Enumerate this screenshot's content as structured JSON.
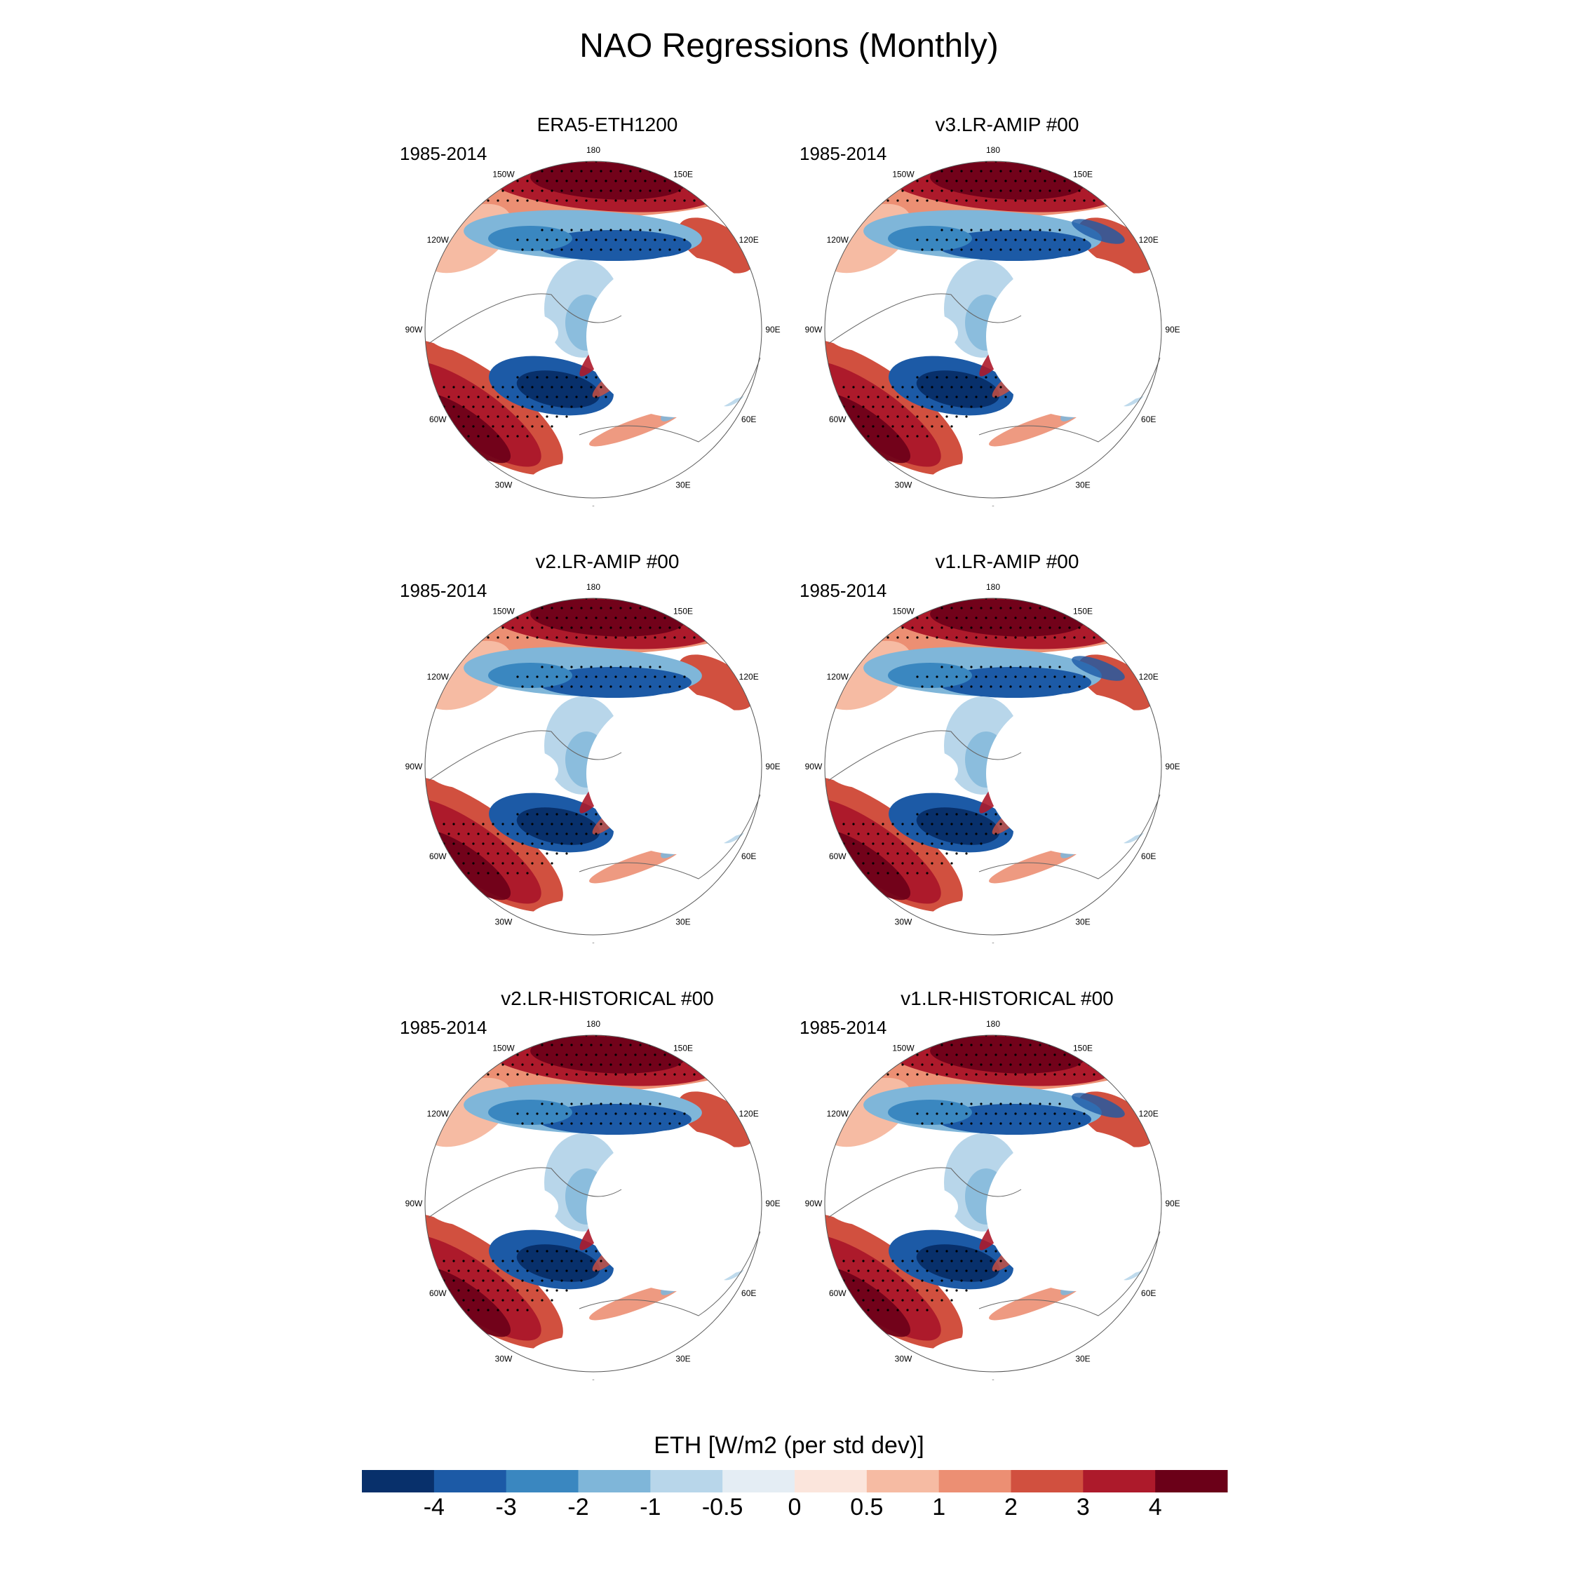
{
  "title": "NAO Regressions (Monthly)",
  "period": "1985-2014",
  "lon_labels": [
    "180",
    "150E",
    "120E",
    "90E",
    "60E",
    "30E",
    "0",
    "30W",
    "60W",
    "90W",
    "120W",
    "150W"
  ],
  "panels": [
    {
      "title": "ERA5-ETH1200",
      "period": "1985-2014"
    },
    {
      "title": "v3.LR-AMIP  #00",
      "period": "1985-2014"
    },
    {
      "title": "v2.LR-AMIP  #00",
      "period": "1985-2014"
    },
    {
      "title": "v1.LR-AMIP  #00",
      "period": "1985-2014"
    },
    {
      "title": "v2.LR-HISTORICAL  #00",
      "period": "1985-2014"
    },
    {
      "title": "v1.LR-HISTORICAL  #00",
      "period": "1985-2014"
    }
  ],
  "colorbar": {
    "title": "ETH [W/m2 (per std dev)]",
    "ticks": [
      "-4",
      "-3",
      "-2",
      "-1",
      "-0.5",
      "0",
      "0.5",
      "1",
      "2",
      "3",
      "4"
    ],
    "colors": [
      "#08306b",
      "#1c5aa6",
      "#3a87c0",
      "#7fb6d9",
      "#b8d6ea",
      "#e4edf4",
      "#fbe5dc",
      "#f6bba3",
      "#ec8f73",
      "#d1503f",
      "#ad1a2b",
      "#6b0018"
    ]
  }
}
